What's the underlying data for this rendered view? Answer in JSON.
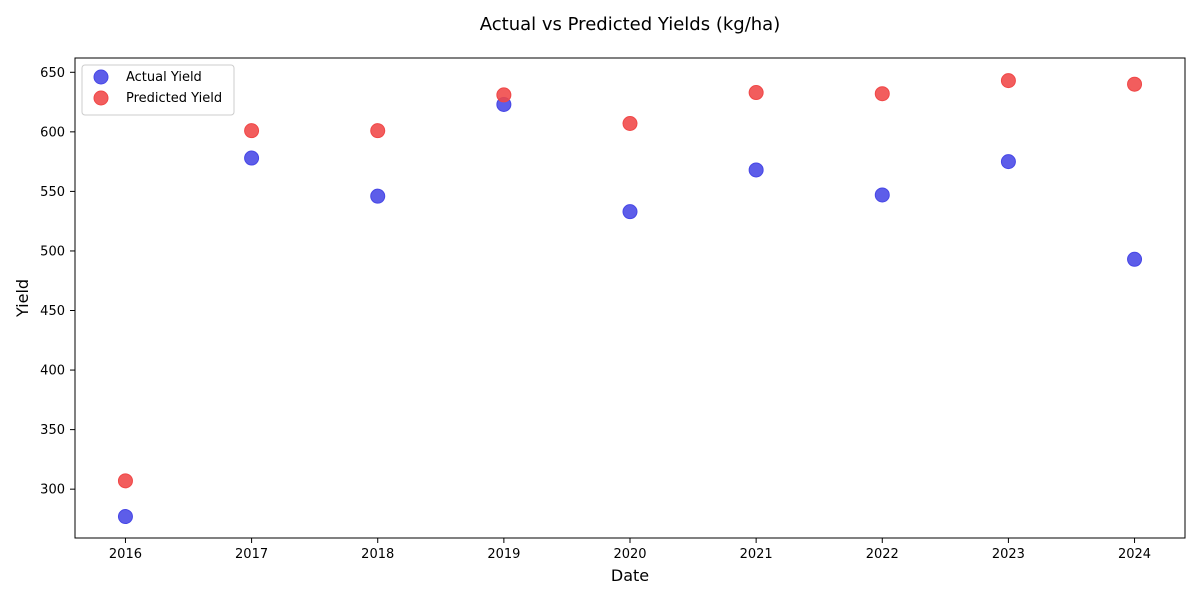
{
  "chart_data": {
    "type": "scatter",
    "title": "Actual vs Predicted Yields (kg/ha)",
    "xlabel": "Date",
    "ylabel": "Yield",
    "xlim": [
      2015.6,
      2024.4
    ],
    "ylim": [
      259,
      662
    ],
    "xticks": [
      "2016",
      "2017",
      "2018",
      "2019",
      "2020",
      "2021",
      "2022",
      "2023",
      "2024"
    ],
    "yticks": [
      "300",
      "350",
      "400",
      "450",
      "500",
      "550",
      "600",
      "650"
    ],
    "grid": false,
    "legend_position": "upper-left",
    "x": [
      2016,
      2017,
      2018,
      2019,
      2020,
      2021,
      2022,
      2023,
      2024
    ],
    "series": [
      {
        "name": "Actual Yield",
        "color": "#4747e6",
        "values": [
          277,
          578,
          546,
          623,
          533,
          568,
          547,
          575,
          493
        ]
      },
      {
        "name": "Predicted Yield",
        "color": "#f04747",
        "values": [
          307,
          601,
          601,
          631,
          607,
          633,
          632,
          643,
          640
        ]
      }
    ]
  }
}
